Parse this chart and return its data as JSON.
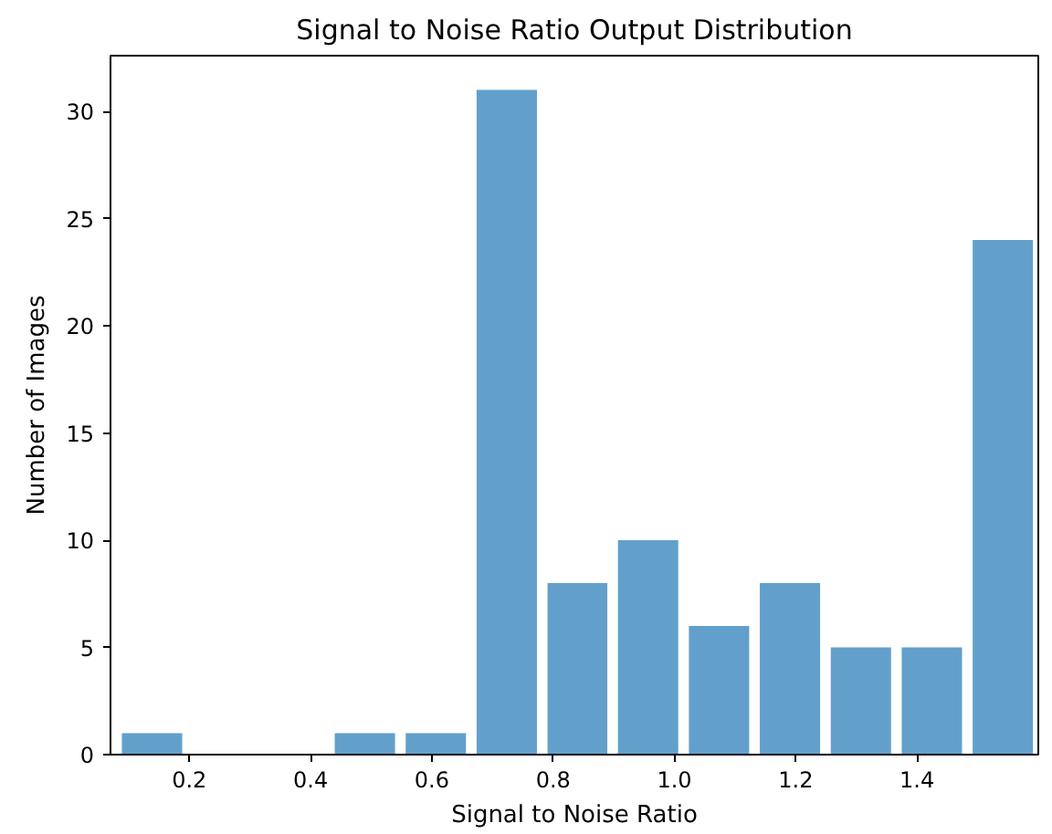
{
  "chart_data": {
    "type": "histogram",
    "title": "Signal to Noise Ratio Output Distribution",
    "xlabel": "Signal to Noise Ratio",
    "ylabel": "Number of Images",
    "bins": [
      0.08,
      0.197,
      0.431,
      0.548,
      0.665,
      0.782,
      0.898,
      1.015,
      1.132,
      1.249,
      1.366,
      1.483,
      1.6
    ],
    "values": [
      1,
      0,
      1,
      1,
      31,
      8,
      10,
      6,
      8,
      5,
      5,
      24
    ],
    "color": "#62a0cb",
    "xlim": [
      0.07,
      1.6
    ],
    "xticks": [
      0.2,
      0.4,
      0.6,
      0.8,
      {
        "value": 1.0,
        "label": "1.0"
      },
      1.2,
      1.4
    ],
    "ylim": [
      0,
      32.6
    ],
    "yticks": [
      0,
      5,
      10,
      15,
      20,
      25,
      30
    ],
    "grid": false
  }
}
